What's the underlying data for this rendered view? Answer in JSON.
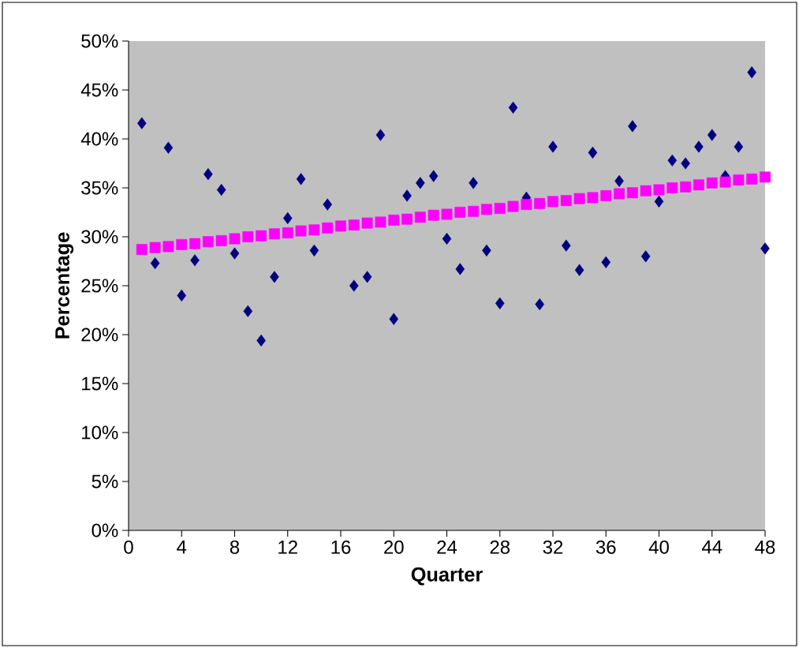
{
  "chart_data": {
    "type": "scatter",
    "xlabel": "Quarter",
    "ylabel": "Percentage",
    "x": [
      1,
      2,
      3,
      4,
      5,
      6,
      7,
      8,
      9,
      10,
      11,
      12,
      13,
      14,
      15,
      16,
      17,
      18,
      19,
      20,
      21,
      22,
      23,
      24,
      25,
      26,
      27,
      28,
      29,
      30,
      31,
      32,
      33,
      34,
      35,
      36,
      37,
      38,
      39,
      40,
      41,
      42,
      43,
      44,
      45,
      46,
      47,
      48
    ],
    "series": [
      {
        "color": "#000080",
        "marker": "diamond",
        "values": [
          41.6,
          27.3,
          39.1,
          24.0,
          27.6,
          36.4,
          34.8,
          28.3,
          22.4,
          19.4,
          25.9,
          31.9,
          35.9,
          28.6,
          33.3,
          null,
          25.0,
          25.9,
          40.4,
          21.6,
          34.2,
          35.5,
          36.2,
          29.8,
          26.7,
          35.5,
          28.6,
          23.2,
          43.2,
          34.0,
          23.1,
          39.2,
          29.1,
          26.6,
          38.6,
          27.4,
          35.7,
          41.3,
          28.0,
          33.6,
          37.8,
          37.5,
          39.2,
          40.4,
          36.2,
          39.2,
          46.8,
          28.8
        ]
      },
      {
        "color": "#ff00ff",
        "marker": "square",
        "values": [
          28.7,
          28.9,
          29.0,
          29.2,
          29.3,
          29.5,
          29.6,
          29.8,
          30.0,
          30.1,
          30.3,
          30.4,
          30.6,
          30.7,
          30.9,
          31.1,
          31.2,
          31.4,
          31.5,
          31.7,
          31.8,
          32.0,
          32.2,
          32.3,
          32.5,
          32.6,
          32.8,
          32.9,
          33.1,
          33.3,
          33.4,
          33.6,
          33.7,
          33.9,
          34.0,
          34.2,
          34.4,
          34.5,
          34.7,
          34.8,
          35.0,
          35.1,
          35.3,
          35.5,
          35.6,
          35.8,
          35.9,
          36.1
        ]
      }
    ],
    "xlim": [
      0,
      48
    ],
    "xticks": [
      0,
      4,
      8,
      12,
      16,
      20,
      24,
      28,
      32,
      36,
      40,
      44,
      48
    ],
    "ylim": [
      0,
      50
    ],
    "yticks": [
      {
        "value": 0,
        "label": "0%"
      },
      {
        "value": 5,
        "label": "5%"
      },
      {
        "value": 10,
        "label": "10%"
      },
      {
        "value": 15,
        "label": "15%"
      },
      {
        "value": 20,
        "label": "20%"
      },
      {
        "value": 25,
        "label": "25%"
      },
      {
        "value": 30,
        "label": "30%"
      },
      {
        "value": 35,
        "label": "35%"
      },
      {
        "value": 40,
        "label": "40%"
      },
      {
        "value": 45,
        "label": "45%"
      },
      {
        "value": 50,
        "label": "50%"
      }
    ]
  }
}
